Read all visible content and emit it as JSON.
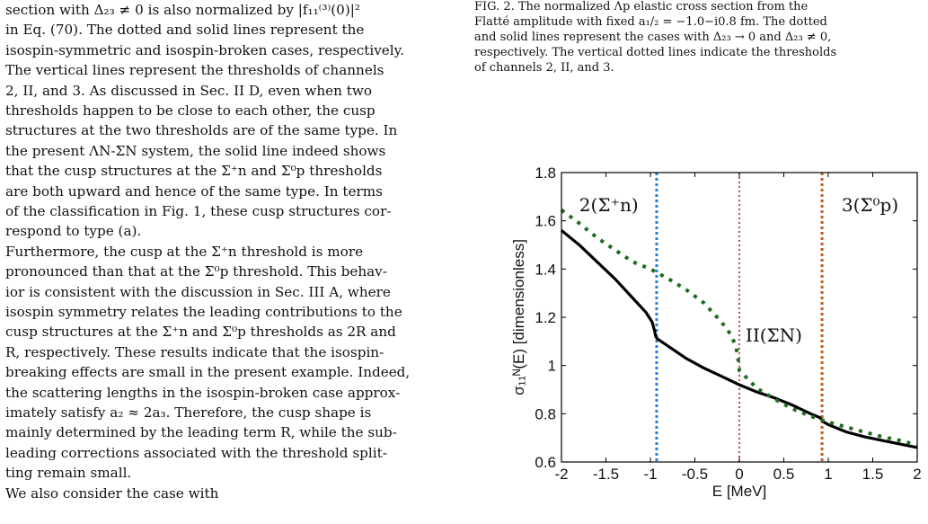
{
  "left_column": {
    "lines": [
      "section with Δ₂₃ ≠ 0 is also normalized by |f₁₁⁽³⁾(0)|²",
      "in Eq. (70). The dotted and solid lines represent the",
      "isospin-symmetric and isospin-broken cases, respectively.",
      "The vertical lines represent the thresholds of channels",
      "2, II, and 3. As discussed in Sec. II D, even when two",
      "thresholds happen to be close to each other, the cusp",
      "structures at the two thresholds are of the same type. In",
      "the present ΛN-ΣN system, the solid line indeed shows",
      "that the cusp structures at the Σ⁺n and Σ⁰p thresholds",
      "are both upward and hence of the same type. In terms",
      "of the classification in Fig. 1, these cusp structures cor-",
      "respond to type (a).",
      "    Furthermore, the cusp at the Σ⁺n threshold is more",
      "pronounced than that at the Σ⁰p threshold. This behav-",
      "ior is consistent with the discussion in Sec. III A, where",
      "isospin symmetry relates the leading contributions to the",
      "cusp structures at the Σ⁺n and Σ⁰p thresholds as 2R and",
      "R, respectively. These results indicate that the isospin-",
      "breaking effects are small in the present example. Indeed,",
      "the scattering lengths in the isospin-broken case approx-",
      "imately satisfy a₂ ≈ 2a₃. Therefore, the cusp shape is",
      "mainly determined by the leading term R, while the sub-",
      "leading corrections associated with the threshold split-",
      "ting remain small.",
      "    We also consider the case with"
    ]
  },
  "caption": {
    "lines": [
      "FIG. 2.    The normalized Λp elastic cross section from the",
      "Flatté amplitude with fixed a₁/₂ = −1.0−i0.8 fm. The dotted",
      "and solid lines represent the cases with Δ₂₃ → 0 and Δ₂₃ ≠ 0,",
      "respectively. The vertical dotted lines indicate the thresholds",
      "of channels 2, II, and 3."
    ]
  },
  "chart_data": {
    "type": "line",
    "xlabel": "E [MeV]",
    "ylabel": "σ₁₁ᴺ(E) [dimensionless]",
    "xlim": [
      -2,
      2
    ],
    "ylim": [
      0.6,
      1.8
    ],
    "xticks": [
      -2,
      -1.5,
      -1,
      -0.5,
      0,
      0.5,
      1,
      1.5,
      2
    ],
    "xtick_labels": [
      "-2",
      "-1.5",
      "-1",
      "-0.5",
      "0",
      "0.5",
      "1",
      "1.5",
      "2"
    ],
    "yticks": [
      0.6,
      0.8,
      1,
      1.2,
      1.4,
      1.6,
      1.8
    ],
    "ytick_labels": [
      "0.6",
      "0.8",
      "1",
      "1.2",
      "1.4",
      "1.6",
      "1.8"
    ],
    "series": [
      {
        "style": "solid",
        "color": "#000000",
        "x": [
          -2,
          -1.8,
          -1.6,
          -1.4,
          -1.2,
          -1.05,
          -0.98,
          -0.95,
          -0.94,
          -0.92,
          -0.88,
          -0.8,
          -0.6,
          -0.4,
          -0.2,
          0,
          0.2,
          0.4,
          0.6,
          0.8,
          0.9,
          0.93,
          0.95,
          1.0,
          1.2,
          1.4,
          1.6,
          1.8,
          2.0
        ],
        "y": [
          1.56,
          1.5,
          1.43,
          1.36,
          1.28,
          1.22,
          1.18,
          1.14,
          1.12,
          1.11,
          1.1,
          1.08,
          1.03,
          0.99,
          0.955,
          0.92,
          0.89,
          0.865,
          0.835,
          0.8,
          0.785,
          0.775,
          0.765,
          0.755,
          0.725,
          0.705,
          0.69,
          0.675,
          0.66
        ]
      },
      {
        "style": "dotted",
        "color": "#1e6b1e",
        "x": [
          -2,
          -1.8,
          -1.6,
          -1.4,
          -1.2,
          -1.0,
          -0.8,
          -0.6,
          -0.4,
          -0.2,
          -0.1,
          -0.05,
          -0.02,
          0,
          0.2,
          0.4,
          0.6,
          0.8,
          1.0,
          1.2,
          1.4,
          1.6,
          1.8,
          2.0
        ],
        "y": [
          1.645,
          1.59,
          1.53,
          1.48,
          1.43,
          1.4,
          1.36,
          1.315,
          1.26,
          1.18,
          1.13,
          1.09,
          1.05,
          0.98,
          0.905,
          0.86,
          0.82,
          0.79,
          0.765,
          0.745,
          0.725,
          0.705,
          0.69,
          0.67
        ]
      }
    ],
    "thresholds": [
      {
        "x": -0.93,
        "color": "#2a7fd0"
      },
      {
        "x": 0,
        "color": "#b51e1e"
      },
      {
        "x": 0.93,
        "color": "#c65a1e"
      }
    ],
    "annotations": [
      {
        "text": "2(Σ⁺n)",
        "x": -1.8,
        "y": 1.64
      },
      {
        "text": "II(ΣN)",
        "x": 0.07,
        "y": 1.1
      },
      {
        "text": "3(Σ⁰p)",
        "x": 1.15,
        "y": 1.64
      }
    ]
  }
}
